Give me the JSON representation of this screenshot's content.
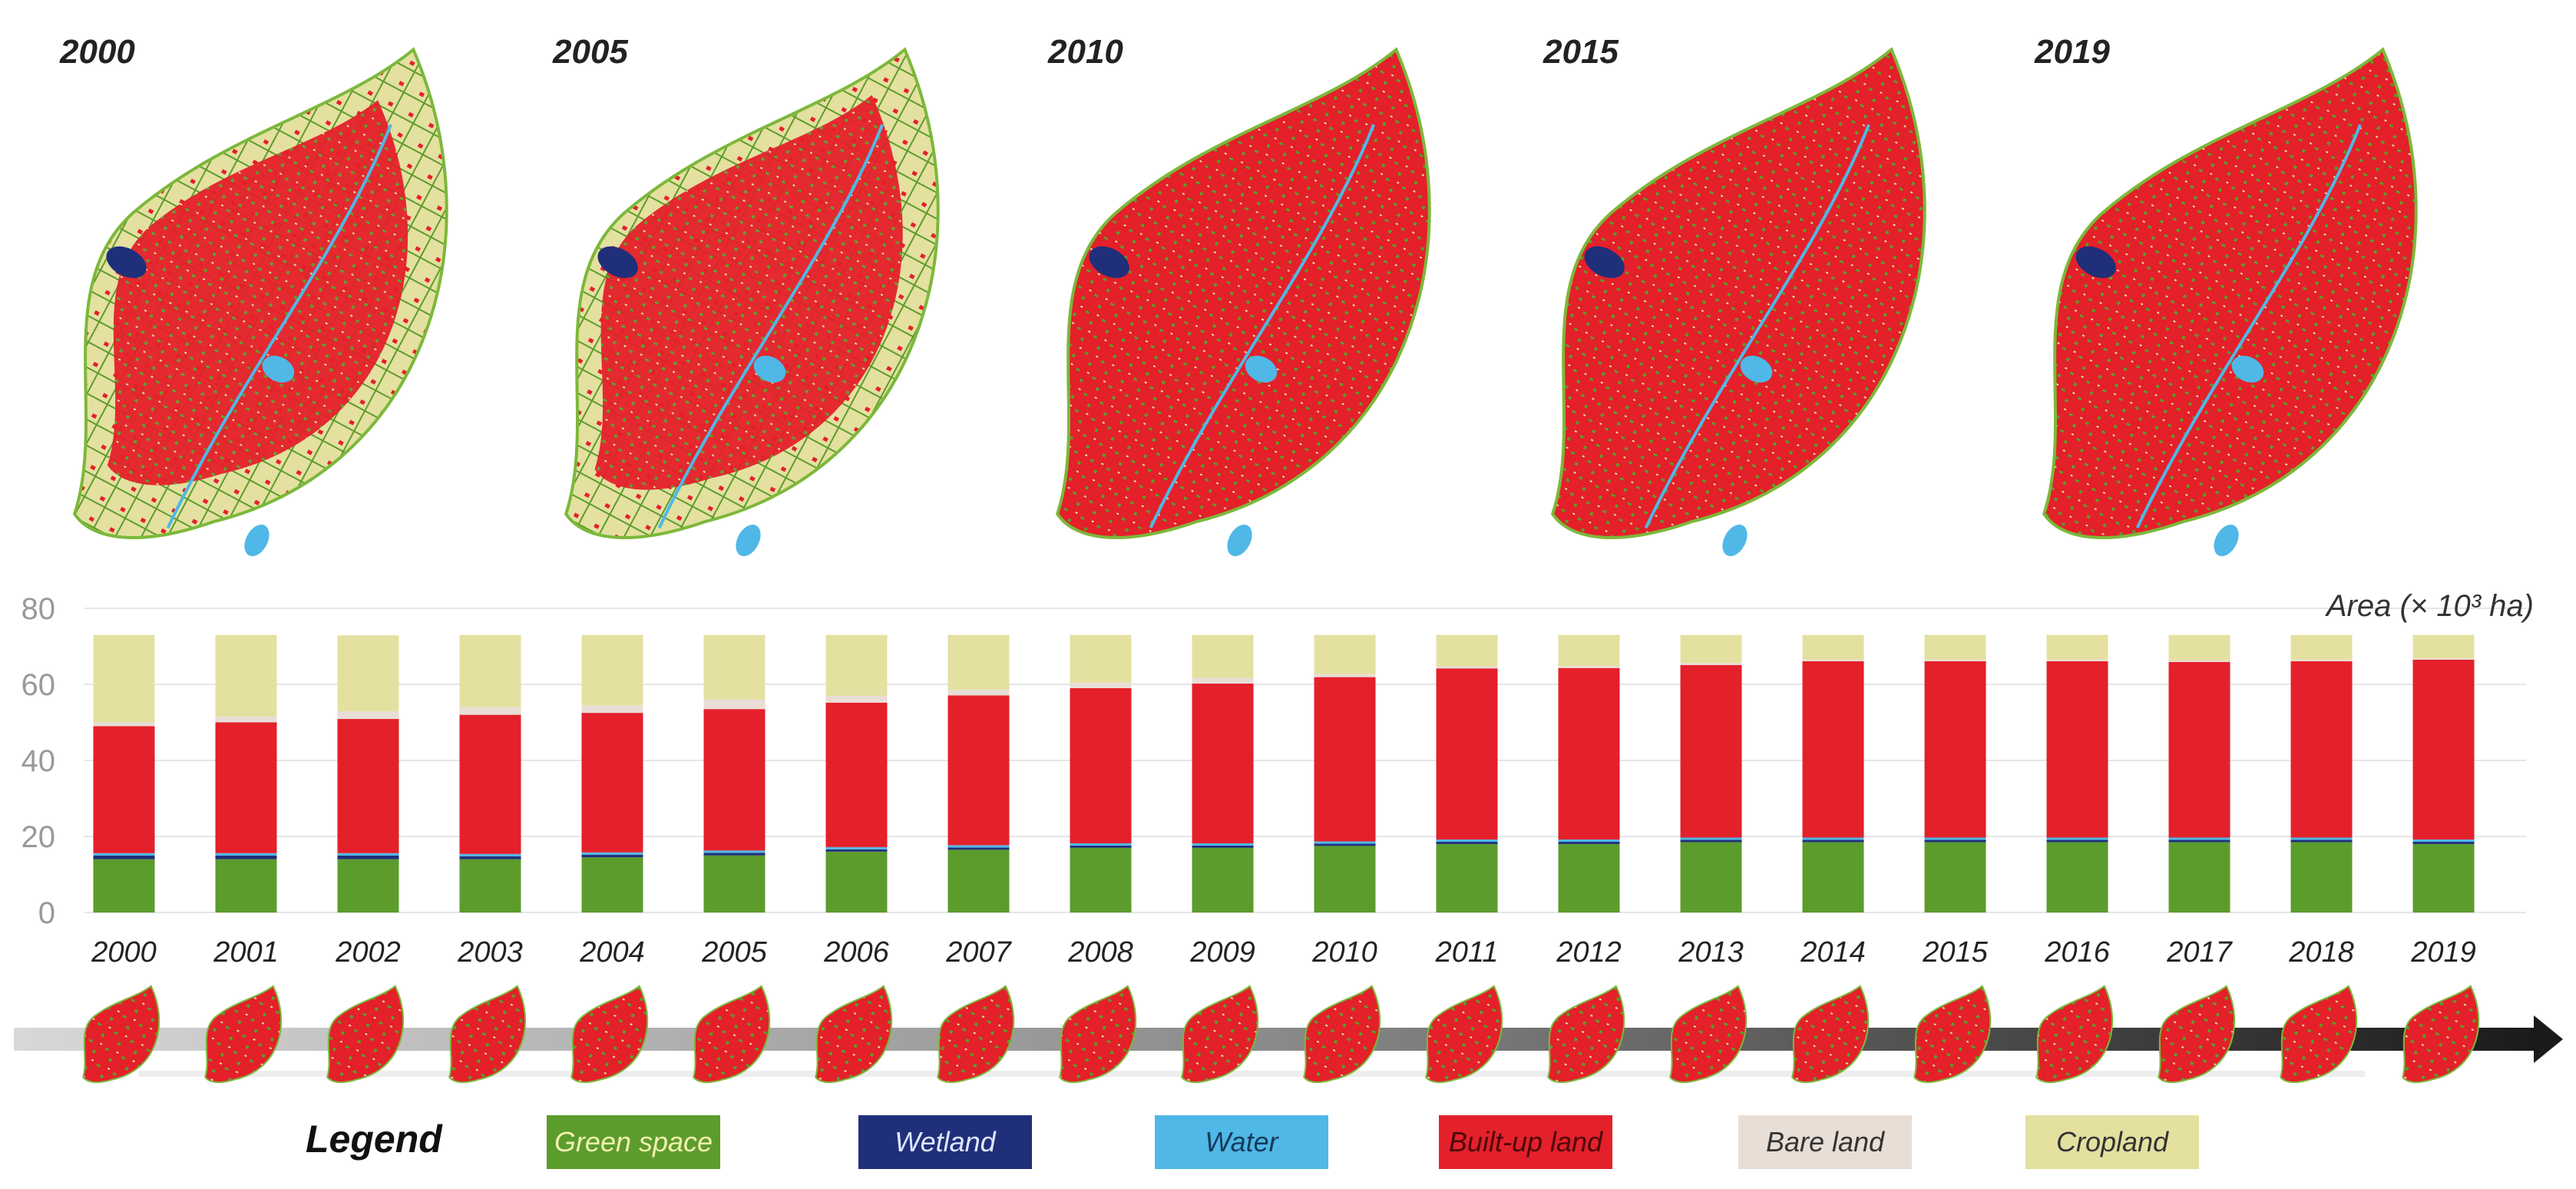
{
  "map_years": [
    "2000",
    "2005",
    "2010",
    "2015",
    "2019"
  ],
  "colors": {
    "green_space": "#5c9c2c",
    "wetland": "#1f2f7a",
    "water": "#4fb8e6",
    "built_up": "#e4202a",
    "bare_land": "#e8ded6",
    "cropland": "#e4e0a0",
    "leaf_outline": "#7cb83a"
  },
  "legend": {
    "title": "Legend",
    "items": [
      {
        "label": "Green space",
        "color": "#5c9c2c",
        "text_color": "#f1f0b0"
      },
      {
        "label": "Wetland",
        "color": "#1f2f7a",
        "text_color": "#dfe6ff"
      },
      {
        "label": "Water",
        "color": "#4fb8e6",
        "text_color": "#163a5a"
      },
      {
        "label": "Built-up land",
        "color": "#e4202a",
        "text_color": "#4a0a0a"
      },
      {
        "label": "Bare land",
        "color": "#e8ded6",
        "text_color": "#333333"
      },
      {
        "label": "Cropland",
        "color": "#e4e0a0",
        "text_color": "#333333"
      }
    ]
  },
  "chart_data": {
    "type": "bar",
    "stacked": true,
    "ylabel": "Area (× 10³ ha)",
    "ylim": [
      0,
      80
    ],
    "yticks": [
      0,
      20,
      40,
      60,
      80
    ],
    "grid": true,
    "categories": [
      "2000",
      "2001",
      "2002",
      "2003",
      "2004",
      "2005",
      "2006",
      "2007",
      "2008",
      "2009",
      "2010",
      "2011",
      "2012",
      "2013",
      "2014",
      "2015",
      "2016",
      "2017",
      "2018",
      "2019"
    ],
    "series": [
      {
        "name": "Green space",
        "color": "#5c9c2c",
        "values": [
          14,
          14,
          14,
          14,
          14.5,
          15,
          16,
          16.5,
          17,
          17,
          17.5,
          18,
          18,
          18.5,
          18.5,
          18.5,
          18.5,
          18.5,
          18.5,
          18
        ]
      },
      {
        "name": "Wetland",
        "color": "#1f2f7a",
        "values": [
          1,
          1,
          1,
          0.8,
          0.7,
          0.7,
          0.6,
          0.6,
          0.6,
          0.6,
          0.6,
          0.6,
          0.6,
          0.6,
          0.6,
          0.6,
          0.6,
          0.6,
          0.6,
          0.6
        ]
      },
      {
        "name": "Water",
        "color": "#4fb8e6",
        "values": [
          0.6,
          0.6,
          0.6,
          0.6,
          0.6,
          0.6,
          0.6,
          0.6,
          0.6,
          0.6,
          0.6,
          0.6,
          0.6,
          0.6,
          0.6,
          0.6,
          0.6,
          0.6,
          0.6,
          0.6
        ]
      },
      {
        "name": "Built-up land",
        "color": "#e4202a",
        "values": [
          33.4,
          34.4,
          35.3,
          36.6,
          36.7,
          37.2,
          38,
          39.4,
          40.8,
          42,
          43.2,
          45,
          45.1,
          45.4,
          46.4,
          46.4,
          46.4,
          46.2,
          46.4,
          47.3
        ]
      },
      {
        "name": "Bare land",
        "color": "#e8ded6",
        "values": [
          1,
          1.5,
          2,
          2,
          2,
          2.5,
          1.8,
          1.5,
          1.5,
          1.5,
          0.8,
          0.5,
          0.5,
          0.5,
          0.4,
          0.4,
          0.4,
          0.4,
          0.4,
          0.4
        ]
      },
      {
        "name": "Cropland",
        "color": "#e4e0a0",
        "values": [
          23,
          21.5,
          20,
          19,
          18.5,
          17,
          16,
          14.4,
          12.5,
          11.3,
          10.3,
          8.3,
          8.2,
          7.4,
          6.5,
          6.5,
          6.5,
          6.7,
          6.5,
          6.1
        ]
      }
    ]
  }
}
